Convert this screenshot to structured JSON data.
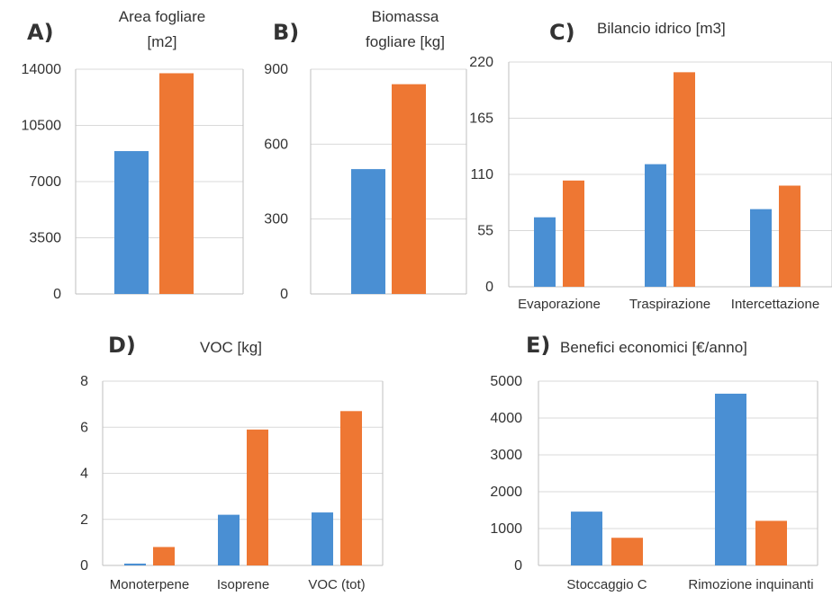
{
  "colors": {
    "series1": "#4a8fd3",
    "series2": "#ee7733",
    "grid": "#d9d9d9",
    "axis": "#bfbfbf",
    "text": "#333333"
  },
  "chart_data": [
    {
      "panel": "A)",
      "type": "bar",
      "title_lines": [
        "Area fogliare",
        "[m2]"
      ],
      "categories": [
        ""
      ],
      "series": [
        {
          "values": [
            8900
          ]
        },
        {
          "values": [
            13750
          ]
        }
      ],
      "ylim": [
        0,
        14000
      ],
      "yticks": [
        0,
        3500,
        7000,
        10500,
        14000
      ],
      "grid": true
    },
    {
      "panel": "B)",
      "type": "bar",
      "title_lines": [
        "Biomassa",
        "fogliare [kg]"
      ],
      "categories": [
        ""
      ],
      "series": [
        {
          "values": [
            500
          ]
        },
        {
          "values": [
            840
          ]
        }
      ],
      "ylim": [
        0,
        900
      ],
      "yticks": [
        0,
        300,
        600,
        900
      ],
      "grid": true
    },
    {
      "panel": "C)",
      "type": "bar",
      "title_lines": [
        "Bilancio idrico [m3]"
      ],
      "categories": [
        "Evaporazione",
        "Traspirazione",
        "Intercettazione"
      ],
      "series": [
        {
          "values": [
            68,
            120,
            76
          ]
        },
        {
          "values": [
            104,
            210,
            99
          ]
        }
      ],
      "ylim": [
        0,
        220
      ],
      "yticks": [
        0,
        55,
        110,
        165,
        220
      ],
      "grid": true
    },
    {
      "panel": "D)",
      "type": "bar",
      "title_lines": [
        "VOC [kg]"
      ],
      "categories": [
        "Monoterpene",
        "Isoprene",
        "VOC (tot)"
      ],
      "series": [
        {
          "values": [
            0.08,
            2.2,
            2.3
          ]
        },
        {
          "values": [
            0.8,
            5.9,
            6.7
          ]
        }
      ],
      "ylim": [
        0,
        8
      ],
      "yticks": [
        0,
        2,
        4,
        6,
        8
      ],
      "grid": true
    },
    {
      "panel": "E)",
      "type": "bar",
      "title_lines": [
        "Benefici economici [€/anno]"
      ],
      "categories": [
        "Stoccaggio C",
        "Rimozione inquinanti"
      ],
      "series": [
        {
          "values": [
            1460,
            4660
          ]
        },
        {
          "values": [
            750,
            1210
          ]
        }
      ],
      "ylim": [
        0,
        5000
      ],
      "yticks": [
        0,
        1000,
        2000,
        3000,
        4000,
        5000
      ],
      "grid": true
    }
  ]
}
